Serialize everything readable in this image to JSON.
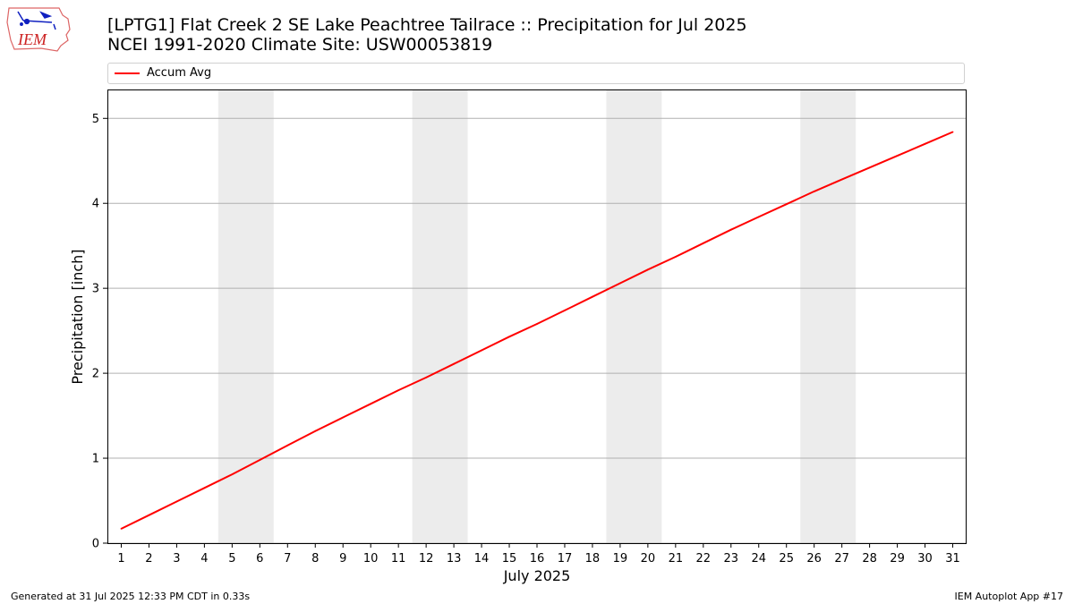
{
  "logo": {
    "text": "IEM"
  },
  "title": {
    "line1": "[LPTG1] Flat Creek 2 SE Lake Peachtree Tailrace :: Precipitation for Jul 2025",
    "line2": "NCEI 1991-2020 Climate Site: USW00053819"
  },
  "colors": {
    "series": "#ff0000",
    "weekend_band": "#ececec",
    "grid": "#b0b0b0"
  },
  "chart_data": {
    "type": "line",
    "xlabel": "July 2025",
    "ylabel": "Precipitation [inch]",
    "x": [
      1,
      2,
      3,
      4,
      5,
      6,
      7,
      8,
      9,
      10,
      11,
      12,
      13,
      14,
      15,
      16,
      17,
      18,
      19,
      20,
      21,
      22,
      23,
      24,
      25,
      26,
      27,
      28,
      29,
      30,
      31
    ],
    "xlim": [
      0.5,
      31.5
    ],
    "ylim": [
      0,
      5.34
    ],
    "yticks": [
      0,
      1,
      2,
      3,
      4,
      5
    ],
    "grid": "y",
    "legend": "top",
    "weekend_bands": [
      [
        4.5,
        6.5
      ],
      [
        11.5,
        13.5
      ],
      [
        18.5,
        20.5
      ],
      [
        25.5,
        27.5
      ]
    ],
    "series": [
      {
        "name": "Accum Avg",
        "color": "#ff0000",
        "values": [
          0.17,
          0.33,
          0.49,
          0.65,
          0.81,
          0.98,
          1.15,
          1.32,
          1.48,
          1.64,
          1.8,
          1.95,
          2.11,
          2.27,
          2.43,
          2.58,
          2.74,
          2.9,
          3.06,
          3.22,
          3.37,
          3.53,
          3.69,
          3.84,
          3.99,
          4.14,
          4.28,
          4.42,
          4.56,
          4.7,
          4.84
        ]
      }
    ]
  },
  "footer": {
    "left": "Generated at 31 Jul 2025 12:33 PM CDT in 0.33s",
    "right": "IEM Autoplot App #17"
  }
}
